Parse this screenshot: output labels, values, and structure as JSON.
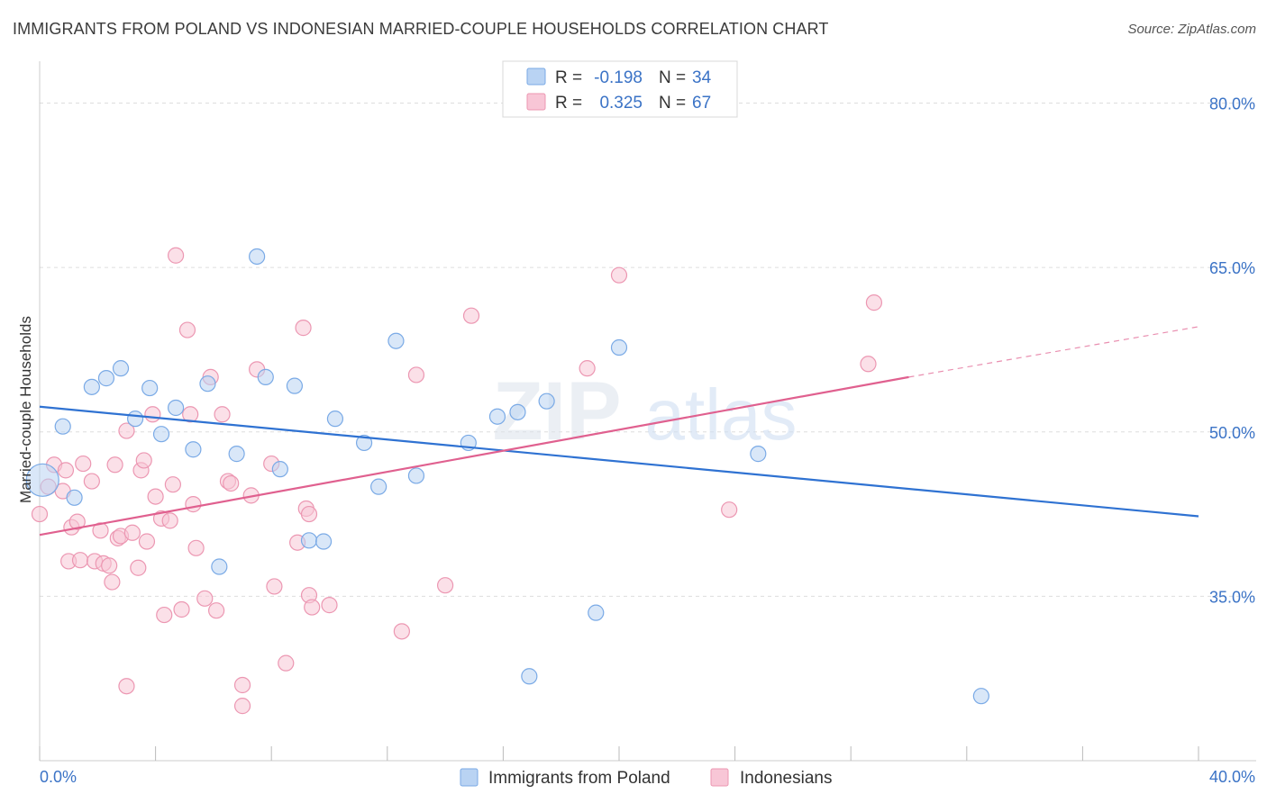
{
  "title": "IMMIGRANTS FROM POLAND VS INDONESIAN MARRIED-COUPLE HOUSEHOLDS CORRELATION CHART",
  "source": "Source: ZipAtlas.com",
  "watermark": {
    "zip": "ZIP",
    "atlas": "atlas"
  },
  "colors": {
    "blue_fill": "#b9d3f3",
    "blue_stroke": "#7aaae6",
    "blue_line": "#2f72d2",
    "pink_fill": "#f8c6d6",
    "pink_stroke": "#ec97b2",
    "pink_line": "#e0608f",
    "axis_text": "#3b73c6",
    "grid": "#dddddd"
  },
  "legend_stats": [
    {
      "series": "Immigrants from Poland",
      "r_label": "R =",
      "r_value": "-0.198",
      "n_label": "N =",
      "n_value": "34"
    },
    {
      "series": "Indonesians",
      "r_label": "R =",
      "r_value": "0.325",
      "n_label": "N =",
      "n_value": "67"
    }
  ],
  "chart_data": {
    "type": "scatter",
    "title": "IMMIGRANTS FROM POLAND VS INDONESIAN MARRIED-COUPLE HOUSEHOLDS CORRELATION CHART",
    "xlabel": "",
    "ylabel": "Married-couple Households",
    "xlim": [
      0,
      40
    ],
    "ylim": [
      20,
      83
    ],
    "x_tick_labels": [
      "0.0%",
      "40.0%"
    ],
    "y_ticks": [
      35,
      50,
      65,
      80
    ],
    "y_tick_labels": [
      "35.0%",
      "50.0%",
      "65.0%",
      "80.0%"
    ],
    "legend_position": "bottom-center",
    "series": [
      {
        "name": "Immigrants from Poland",
        "color": "blue",
        "r": -0.198,
        "n": 34,
        "trend": {
          "x0": 0,
          "y0": 52.3,
          "x1": 40,
          "y1": 42.3
        },
        "points": [
          [
            0.1,
            45.6
          ],
          [
            0.8,
            50.5
          ],
          [
            1.2,
            44.0
          ],
          [
            1.8,
            54.1
          ],
          [
            2.3,
            54.9
          ],
          [
            2.8,
            55.8
          ],
          [
            3.3,
            51.2
          ],
          [
            3.8,
            54.0
          ],
          [
            4.2,
            49.8
          ],
          [
            4.7,
            52.2
          ],
          [
            5.3,
            48.4
          ],
          [
            5.8,
            54.4
          ],
          [
            6.2,
            37.7
          ],
          [
            6.8,
            48.0
          ],
          [
            7.5,
            66.0
          ],
          [
            7.8,
            55.0
          ],
          [
            8.3,
            46.6
          ],
          [
            8.8,
            54.2
          ],
          [
            9.3,
            40.1
          ],
          [
            9.8,
            40.0
          ],
          [
            10.2,
            51.2
          ],
          [
            11.2,
            49.0
          ],
          [
            11.7,
            45.0
          ],
          [
            12.3,
            58.3
          ],
          [
            13.0,
            46.0
          ],
          [
            14.8,
            49.0
          ],
          [
            15.8,
            51.4
          ],
          [
            16.5,
            51.8
          ],
          [
            16.9,
            27.7
          ],
          [
            17.5,
            52.8
          ],
          [
            20.0,
            57.7
          ],
          [
            24.8,
            48.0
          ],
          [
            32.5,
            25.9
          ],
          [
            19.2,
            33.5
          ]
        ]
      },
      {
        "name": "Indonesians",
        "color": "pink",
        "r": 0.325,
        "n": 67,
        "trend": {
          "x0": 0,
          "y0": 40.6,
          "x1": 30.0,
          "y1": 55.0,
          "dash_x1": 40,
          "dash_y1": 59.6
        },
        "points": [
          [
            0.0,
            42.5
          ],
          [
            0.3,
            45.0
          ],
          [
            0.5,
            47.0
          ],
          [
            0.8,
            44.6
          ],
          [
            0.9,
            46.5
          ],
          [
            1.0,
            38.2
          ],
          [
            1.1,
            41.3
          ],
          [
            1.3,
            41.8
          ],
          [
            1.4,
            38.3
          ],
          [
            1.5,
            47.1
          ],
          [
            1.8,
            45.5
          ],
          [
            1.9,
            38.2
          ],
          [
            2.1,
            41.0
          ],
          [
            2.2,
            38.0
          ],
          [
            2.4,
            37.8
          ],
          [
            2.5,
            36.3
          ],
          [
            2.6,
            47.0
          ],
          [
            2.7,
            40.3
          ],
          [
            2.8,
            40.5
          ],
          [
            3.0,
            50.1
          ],
          [
            3.0,
            26.8
          ],
          [
            3.2,
            40.8
          ],
          [
            3.4,
            37.6
          ],
          [
            3.5,
            46.5
          ],
          [
            3.6,
            47.4
          ],
          [
            3.7,
            40.0
          ],
          [
            3.9,
            51.6
          ],
          [
            4.0,
            44.1
          ],
          [
            4.2,
            42.1
          ],
          [
            4.3,
            33.3
          ],
          [
            4.5,
            41.9
          ],
          [
            4.6,
            45.2
          ],
          [
            4.7,
            66.1
          ],
          [
            4.9,
            33.8
          ],
          [
            5.1,
            59.3
          ],
          [
            5.2,
            51.6
          ],
          [
            5.3,
            43.4
          ],
          [
            5.4,
            39.4
          ],
          [
            5.7,
            34.8
          ],
          [
            5.9,
            55.0
          ],
          [
            6.1,
            33.7
          ],
          [
            6.3,
            51.6
          ],
          [
            6.5,
            45.5
          ],
          [
            6.6,
            45.3
          ],
          [
            7.0,
            25.0
          ],
          [
            7.0,
            26.9
          ],
          [
            7.3,
            44.2
          ],
          [
            7.5,
            55.7
          ],
          [
            8.0,
            47.1
          ],
          [
            8.1,
            35.9
          ],
          [
            8.5,
            28.9
          ],
          [
            8.9,
            39.9
          ],
          [
            9.1,
            59.5
          ],
          [
            9.2,
            43.0
          ],
          [
            9.3,
            42.5
          ],
          [
            9.3,
            35.1
          ],
          [
            9.4,
            34.0
          ],
          [
            10.0,
            34.2
          ],
          [
            12.5,
            31.8
          ],
          [
            13.0,
            55.2
          ],
          [
            14.0,
            36.0
          ],
          [
            14.9,
            60.6
          ],
          [
            18.9,
            55.8
          ],
          [
            20.0,
            64.3
          ],
          [
            23.8,
            42.9
          ],
          [
            28.6,
            56.2
          ],
          [
            28.8,
            61.8
          ]
        ]
      }
    ]
  }
}
